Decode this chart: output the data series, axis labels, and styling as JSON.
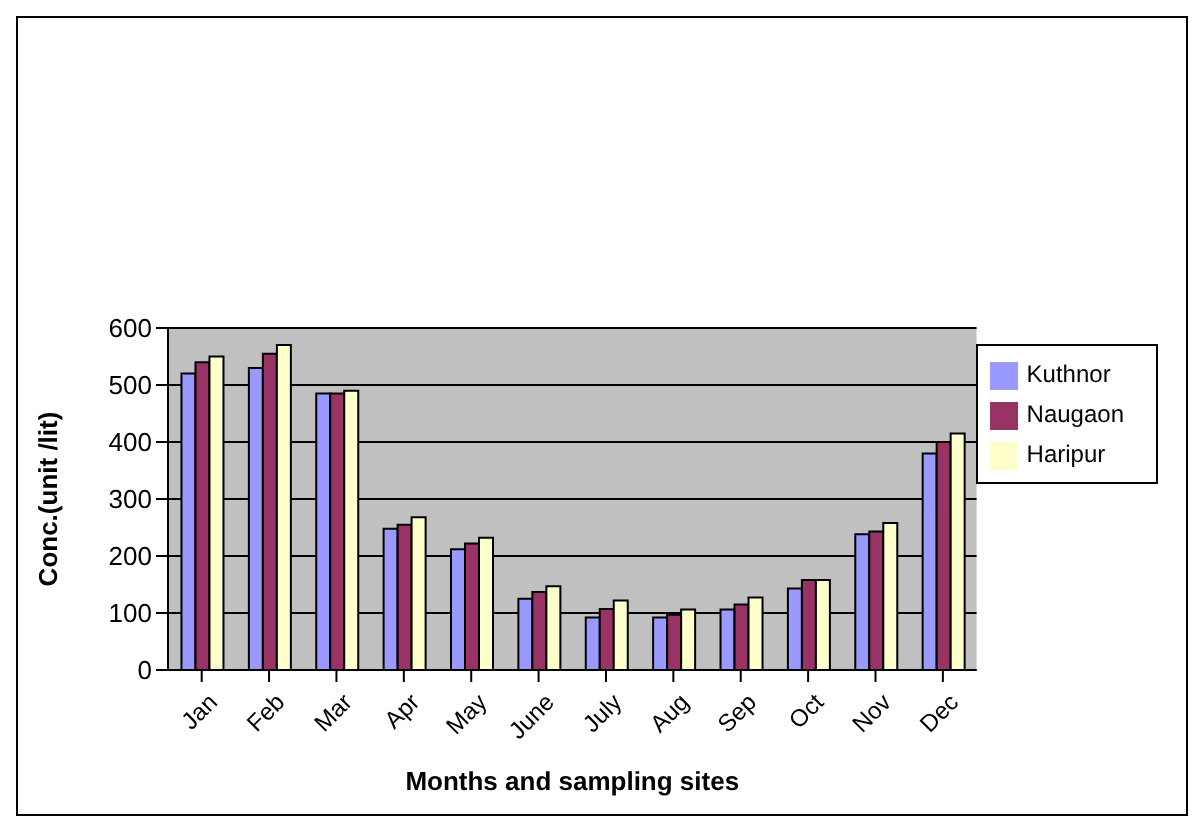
{
  "chart_data": {
    "type": "bar",
    "xlabel": "Months and sampling sites",
    "ylabel": "Conc.(unit /lit)",
    "categories": [
      "Jan",
      "Feb",
      "Mar",
      "Apr",
      "May",
      "June",
      "July",
      "Aug",
      "Sep",
      "Oct",
      "Nov",
      "Dec"
    ],
    "series": [
      {
        "name": "Kuthnor",
        "color": "#9999ff",
        "values": [
          520,
          530,
          485,
          248,
          212,
          125,
          92,
          92,
          106,
          143,
          238,
          380
        ]
      },
      {
        "name": "Naugaon",
        "color": "#993366",
        "values": [
          540,
          555,
          485,
          255,
          222,
          137,
          107,
          97,
          115,
          158,
          243,
          400
        ]
      },
      {
        "name": "Haripur",
        "color": "#ffffcc",
        "values": [
          550,
          570,
          490,
          268,
          232,
          147,
          122,
          106,
          127,
          158,
          258,
          415
        ]
      }
    ],
    "ylim": [
      0,
      600
    ],
    "yticks": [
      0,
      100,
      200,
      300,
      400,
      500,
      600
    ],
    "grid": "y",
    "legend": "right"
  }
}
